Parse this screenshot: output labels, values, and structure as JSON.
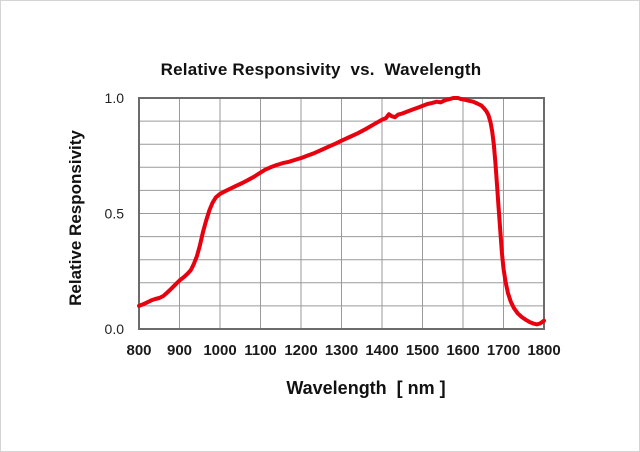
{
  "page": {
    "background": "#ffffff",
    "border_color": "#d4d4d4"
  },
  "chart_data": {
    "type": "line",
    "title": "Relative Responsivity  vs.  Wavelength",
    "xlabel": "Wavelength  [ nm ]",
    "ylabel": "Relative Responsivity",
    "xlim": [
      800,
      1800
    ],
    "ylim": [
      0.0,
      1.0
    ],
    "grid": true,
    "legend": "none",
    "x_tick_step": 100,
    "y_grid_step": 0.1,
    "x_ticks": [
      "800",
      "900",
      "1000",
      "1100",
      "1200",
      "1300",
      "1400",
      "1500",
      "1600",
      "1700",
      "1800"
    ],
    "y_ticks_labeled": [
      {
        "value": 1.0,
        "label": "1.0"
      },
      {
        "value": 0.5,
        "label": "0.5"
      },
      {
        "value": 0.0,
        "label": "0.0"
      }
    ],
    "line_color": "#e8000f",
    "grid_color": "#9a9a9a",
    "frame_color": "#6b6b6b",
    "series": [
      {
        "name": "relative-responsivity",
        "points": [
          [
            800,
            0.1
          ],
          [
            810,
            0.107
          ],
          [
            820,
            0.115
          ],
          [
            830,
            0.124
          ],
          [
            840,
            0.13
          ],
          [
            850,
            0.134
          ],
          [
            860,
            0.143
          ],
          [
            870,
            0.158
          ],
          [
            880,
            0.175
          ],
          [
            890,
            0.192
          ],
          [
            900,
            0.21
          ],
          [
            910,
            0.224
          ],
          [
            920,
            0.24
          ],
          [
            928,
            0.255
          ],
          [
            935,
            0.28
          ],
          [
            943,
            0.315
          ],
          [
            950,
            0.36
          ],
          [
            958,
            0.42
          ],
          [
            966,
            0.47
          ],
          [
            974,
            0.515
          ],
          [
            982,
            0.548
          ],
          [
            990,
            0.57
          ],
          [
            1000,
            0.585
          ],
          [
            1012,
            0.596
          ],
          [
            1025,
            0.607
          ],
          [
            1040,
            0.62
          ],
          [
            1055,
            0.632
          ],
          [
            1070,
            0.646
          ],
          [
            1085,
            0.66
          ],
          [
            1100,
            0.677
          ],
          [
            1112,
            0.69
          ],
          [
            1125,
            0.7
          ],
          [
            1140,
            0.71
          ],
          [
            1155,
            0.718
          ],
          [
            1170,
            0.724
          ],
          [
            1185,
            0.732
          ],
          [
            1200,
            0.74
          ],
          [
            1215,
            0.75
          ],
          [
            1232,
            0.761
          ],
          [
            1250,
            0.775
          ],
          [
            1268,
            0.789
          ],
          [
            1285,
            0.802
          ],
          [
            1300,
            0.815
          ],
          [
            1320,
            0.831
          ],
          [
            1340,
            0.847
          ],
          [
            1360,
            0.866
          ],
          [
            1380,
            0.886
          ],
          [
            1400,
            0.906
          ],
          [
            1410,
            0.913
          ],
          [
            1417,
            0.93
          ],
          [
            1424,
            0.921
          ],
          [
            1432,
            0.917
          ],
          [
            1440,
            0.928
          ],
          [
            1450,
            0.933
          ],
          [
            1462,
            0.941
          ],
          [
            1475,
            0.95
          ],
          [
            1488,
            0.958
          ],
          [
            1500,
            0.966
          ],
          [
            1512,
            0.974
          ],
          [
            1524,
            0.979
          ],
          [
            1535,
            0.984
          ],
          [
            1545,
            0.981
          ],
          [
            1555,
            0.99
          ],
          [
            1566,
            0.995
          ],
          [
            1576,
            1.0
          ],
          [
            1588,
            1.0
          ],
          [
            1596,
            0.995
          ],
          [
            1605,
            0.992
          ],
          [
            1615,
            0.988
          ],
          [
            1625,
            0.984
          ],
          [
            1635,
            0.976
          ],
          [
            1645,
            0.968
          ],
          [
            1652,
            0.955
          ],
          [
            1658,
            0.942
          ],
          [
            1663,
            0.925
          ],
          [
            1668,
            0.895
          ],
          [
            1672,
            0.855
          ],
          [
            1676,
            0.8
          ],
          [
            1680,
            0.72
          ],
          [
            1684,
            0.625
          ],
          [
            1688,
            0.525
          ],
          [
            1692,
            0.425
          ],
          [
            1696,
            0.33
          ],
          [
            1700,
            0.262
          ],
          [
            1705,
            0.205
          ],
          [
            1711,
            0.155
          ],
          [
            1718,
            0.118
          ],
          [
            1726,
            0.09
          ],
          [
            1735,
            0.068
          ],
          [
            1745,
            0.052
          ],
          [
            1755,
            0.04
          ],
          [
            1765,
            0.03
          ],
          [
            1775,
            0.023
          ],
          [
            1783,
            0.02
          ],
          [
            1790,
            0.024
          ],
          [
            1795,
            0.03
          ],
          [
            1800,
            0.036
          ]
        ]
      }
    ]
  }
}
